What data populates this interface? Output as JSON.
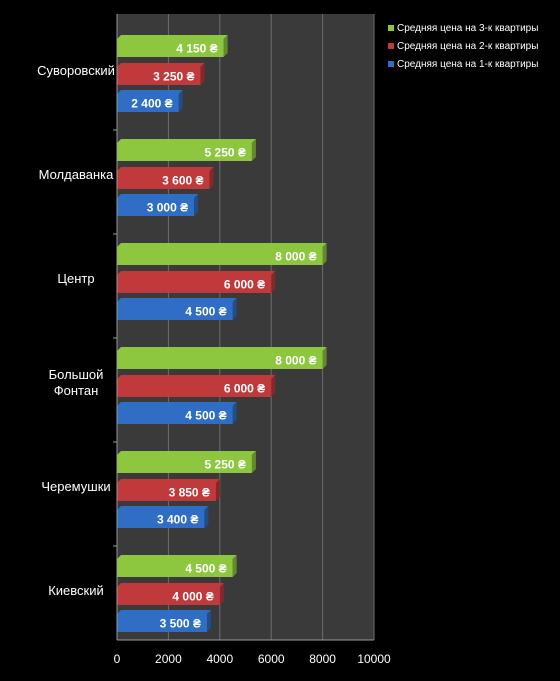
{
  "chart_data": {
    "type": "bar",
    "orientation": "horizontal",
    "categories": [
      "Суворовский",
      "Молдаванка",
      "Центр",
      "Большой Фонтан",
      "Черемушки",
      "Киевский"
    ],
    "category_display": [
      [
        "Суворовский"
      ],
      [
        "Молдаванка"
      ],
      [
        "Центр"
      ],
      [
        "Большой",
        "Фонтан"
      ],
      [
        "Черемушки"
      ],
      [
        "Киевский"
      ]
    ],
    "series": [
      {
        "name": "Средняя цена на 3-к квартиры",
        "color": "#8DC63F",
        "values": [
          4150,
          5250,
          8000,
          8000,
          5250,
          4500
        ]
      },
      {
        "name": "Средняя цена на 2-к квартиры",
        "color": "#C0393B",
        "values": [
          3250,
          3600,
          6000,
          6000,
          3850,
          4000
        ]
      },
      {
        "name": "Средняя цена на 1-к квартиры",
        "color": "#2F6EC4",
        "values": [
          2400,
          3000,
          4500,
          4500,
          3400,
          3500
        ]
      }
    ],
    "data_labels": [
      [
        "4 150 ₴",
        "5 250 ₴",
        "8 000 ₴",
        "8 000 ₴",
        "5 250 ₴",
        "4 500 ₴"
      ],
      [
        "3 250 ₴",
        "3 600 ₴",
        "6 000 ₴",
        "6 000 ₴",
        "3 850 ₴",
        "4 000 ₴"
      ],
      [
        "2 400 ₴",
        "3 000 ₴",
        "4 500 ₴",
        "4 500 ₴",
        "3 400 ₴",
        "3 500 ₴"
      ]
    ],
    "xlim": [
      0,
      10000
    ],
    "xticks": [
      0,
      2000,
      4000,
      6000,
      8000,
      10000
    ],
    "xtick_labels": [
      "0",
      "2000",
      "4000",
      "6000",
      "8000",
      "10000"
    ],
    "grid": true,
    "legend_position": "top-right",
    "background": "#000000",
    "plot_background": "#3A3A3A",
    "text_color": "#FFFFFF"
  }
}
